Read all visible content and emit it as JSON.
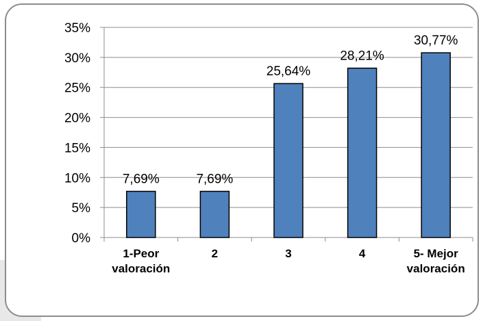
{
  "chart_data": {
    "type": "bar",
    "categories": [
      [
        "1-Peor",
        "valoración"
      ],
      [
        "2"
      ],
      [
        "3"
      ],
      [
        "4"
      ],
      [
        "5- Mejor",
        "valoración"
      ]
    ],
    "values": [
      7.69,
      7.69,
      25.64,
      28.21,
      30.77
    ],
    "data_labels": [
      "7,69%",
      "7,69%",
      "25,64%",
      "28,21%",
      "30,77%"
    ],
    "y_ticks": [
      "0%",
      "5%",
      "10%",
      "15%",
      "20%",
      "25%",
      "30%",
      "35%"
    ],
    "ylim": [
      0,
      35
    ],
    "grid": true,
    "legend": "none",
    "title": "",
    "xlabel": "",
    "ylabel": "",
    "colors": {
      "bar_fill": "#4f81bd",
      "bar_stroke": "#000000",
      "gridline": "#8c8c8c",
      "frame_border": "#8c8c8c",
      "frame_fill": "#ffffff",
      "shadow": "#e8e8e8"
    }
  }
}
